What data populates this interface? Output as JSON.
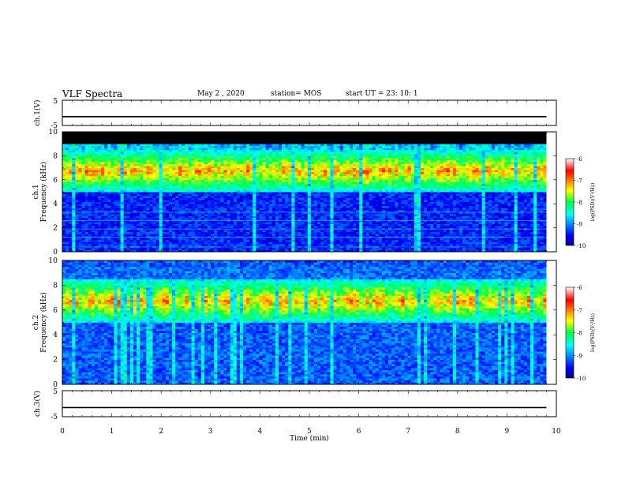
{
  "header": {
    "title": "VLF Spectra",
    "date": "May 2  , 2020",
    "station": "station= MOS",
    "start_ut": "start  UT  =   23: 10: 1"
  },
  "chart_data": [
    {
      "type": "line",
      "panel": "ch1-waveform",
      "ylabel": "ch.1(V)",
      "ylim": [
        -5,
        5
      ],
      "y_ticks": [
        "5",
        "-5"
      ],
      "series": [
        {
          "x": [
            0,
            9.8
          ],
          "values": [
            -1.5,
            -1.5
          ]
        }
      ]
    },
    {
      "type": "heatmap",
      "panel": "ch1-spectrogram",
      "ylabel": "ch.1  Frequency  (kHz)",
      "xlim": [
        0,
        10
      ],
      "ylim": [
        0,
        10
      ],
      "data_extent_minutes": 9.8,
      "y_ticks": [
        "0",
        "2",
        "4",
        "6",
        "8",
        "10"
      ],
      "colorbar": {
        "label": "log(PSD)(V²/Hz)",
        "range": [
          -10,
          -6
        ],
        "ticks": [
          "-6",
          "-7",
          "-8",
          "-9",
          "-10"
        ]
      },
      "saturated_band_khz": [
        9.0,
        10.0
      ],
      "emission_band_khz": [
        5.0,
        8.5
      ]
    },
    {
      "type": "heatmap",
      "panel": "ch2-spectrogram",
      "ylabel": "ch.2  Frequency  (kHz)",
      "xlim": [
        0,
        10
      ],
      "ylim": [
        0,
        10
      ],
      "data_extent_minutes": 9.8,
      "y_ticks": [
        "0",
        "2",
        "4",
        "6",
        "8",
        "10"
      ],
      "colorbar": {
        "label": "log(PSD)(V²/Hz)",
        "range": [
          -10,
          -6
        ],
        "ticks": [
          "-6",
          "-7",
          "-8",
          "-9",
          "-10"
        ]
      },
      "emission_band_khz": [
        5.0,
        8.5
      ]
    },
    {
      "type": "line",
      "panel": "ch3-waveform",
      "ylabel": "ch.3(V)",
      "ylim": [
        -5,
        5
      ],
      "y_ticks": [
        "5",
        "-5"
      ],
      "xlabel": "Time  (min)",
      "x_ticks": [
        "0",
        "1",
        "2",
        "3",
        "4",
        "5",
        "6",
        "7",
        "8",
        "9",
        "10"
      ],
      "series": [
        {
          "x": [
            0,
            9.8
          ],
          "values": [
            -1.5,
            -1.5
          ]
        }
      ]
    }
  ]
}
